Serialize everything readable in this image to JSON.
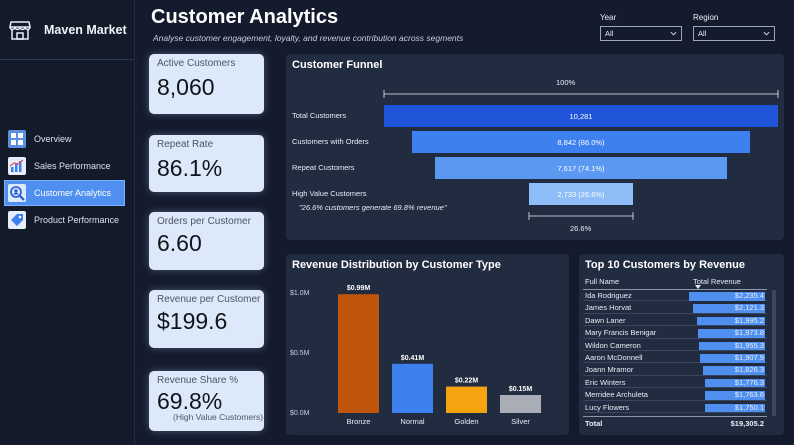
{
  "brand": {
    "name": "Maven Market"
  },
  "nav": [
    {
      "label": "Overview",
      "icon": "grid-icon"
    },
    {
      "label": "Sales Performance",
      "icon": "bar-chart-icon"
    },
    {
      "label": "Customer Analytics",
      "icon": "customer-search-icon",
      "active": true
    },
    {
      "label": "Product Performance",
      "icon": "tag-icon"
    }
  ],
  "header": {
    "title": "Customer Analytics",
    "subtitle": "Analyse customer engagement, loyalty, and revenue contribution across segments"
  },
  "filters": {
    "year": {
      "label": "Year",
      "value": "All"
    },
    "region": {
      "label": "Region",
      "value": "All"
    }
  },
  "kpis": [
    {
      "label": "Active Customers",
      "value": "8,060"
    },
    {
      "label": "Repeat Rate",
      "value": "86.1%"
    },
    {
      "label": "Orders per Customer",
      "value": "6.60"
    },
    {
      "label": "Revenue per Customer",
      "value": "$199.6"
    },
    {
      "label": "Revenue Share %",
      "value": "69.8%",
      "sub": "(High Value Customers)"
    }
  ],
  "funnel": {
    "title": "Customer Funnel",
    "top_label": "100%",
    "bottom_label": "26.6%",
    "annotation": "\"26.6% customers generate 69.8% revenue\"",
    "stages": [
      {
        "name": "Total Customers",
        "value": 10281,
        "label": "10,281",
        "color": "#1f55d8"
      },
      {
        "name": "Customers with Orders",
        "value": 8842,
        "label": "8,842 (86.0%)",
        "color": "#3d80ee"
      },
      {
        "name": "Repeat Customers",
        "value": 7617,
        "label": "7,617 (74.1%)",
        "color": "#5a98f2"
      },
      {
        "name": "High Value Customers",
        "value": 2733,
        "label": "2,733 (26.6%)",
        "color": "#8fbdf7"
      }
    ]
  },
  "chart_data": {
    "type": "bar",
    "title": "Revenue Distribution by Customer Type",
    "categories": [
      "Bronze",
      "Normal",
      "Golden",
      "Silver"
    ],
    "values": [
      0.99,
      0.41,
      0.22,
      0.15
    ],
    "value_labels": [
      "$0.99M",
      "$0.41M",
      "$0.22M",
      "$0.15M"
    ],
    "colors": [
      "#c0540a",
      "#3d80ee",
      "#f5a30e",
      "#a9adb5"
    ],
    "yticks": [
      "$0.0M",
      "$0.5M",
      "$1.0M"
    ],
    "ytick_values": [
      0,
      0.5,
      1.0
    ],
    "ylim": [
      0,
      1.0
    ]
  },
  "top_customers": {
    "title": "Top 10 Customers by Revenue",
    "headers": [
      "Full Name",
      "Total Revenue"
    ],
    "rows": [
      {
        "name": "Ida Rodriguez",
        "revenue": 2235.4,
        "label": "$2,235.4"
      },
      {
        "name": "James Horvat",
        "revenue": 2121.3,
        "label": "$2,121.3"
      },
      {
        "name": "Dawn Laner",
        "revenue": 1995.2,
        "label": "$1,995.2"
      },
      {
        "name": "Mary Francis Benigar",
        "revenue": 1973.8,
        "label": "$1,973.8"
      },
      {
        "name": "Wildon Cameron",
        "revenue": 1955.3,
        "label": "$1,955.3"
      },
      {
        "name": "Aaron McDonnell",
        "revenue": 1907.9,
        "label": "$1,907.9"
      },
      {
        "name": "Joann Mramor",
        "revenue": 1826.3,
        "label": "$1,826.3"
      },
      {
        "name": "Eric Winters",
        "revenue": 1776.3,
        "label": "$1,776.3"
      },
      {
        "name": "Merridee Archuleta",
        "revenue": 1763.6,
        "label": "$1,763.6"
      },
      {
        "name": "Lucy Flowers",
        "revenue": 1750.1,
        "label": "$1,750.1"
      }
    ],
    "total_label": "Total",
    "total_value": "$19,305.2"
  }
}
